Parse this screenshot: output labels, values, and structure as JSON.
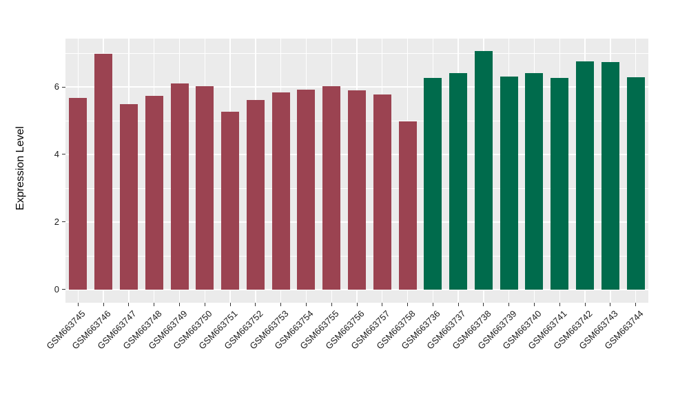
{
  "figure": {
    "ylabel": "Expression Level"
  },
  "chart_data": {
    "type": "bar",
    "title": "",
    "xlabel": "",
    "ylabel": "Expression Level",
    "categories": [
      "GSM663745",
      "GSM663746",
      "GSM663747",
      "GSM663748",
      "GSM663749",
      "GSM663750",
      "GSM663751",
      "GSM663752",
      "GSM663753",
      "GSM663754",
      "GSM663755",
      "GSM663756",
      "GSM663757",
      "GSM663758",
      "GSM663736",
      "GSM663737",
      "GSM663738",
      "GSM663739",
      "GSM663740",
      "GSM663741",
      "GSM663742",
      "GSM663743",
      "GSM663744"
    ],
    "values": [
      5.68,
      6.98,
      5.5,
      5.73,
      6.1,
      6.03,
      5.27,
      5.61,
      5.84,
      5.92,
      6.02,
      5.9,
      5.78,
      4.98,
      6.27,
      6.41,
      7.06,
      6.31,
      6.41,
      6.27,
      6.76,
      6.73,
      6.29
    ],
    "groups": [
      "g1",
      "g1",
      "g1",
      "g1",
      "g1",
      "g1",
      "g1",
      "g1",
      "g1",
      "g1",
      "g1",
      "g1",
      "g1",
      "g1",
      "g2",
      "g2",
      "g2",
      "g2",
      "g2",
      "g2",
      "g2",
      "g2",
      "g2"
    ],
    "group_colors": {
      "g1": "#9B4351",
      "g2": "#006B4C"
    },
    "yticks": [
      0,
      2,
      4,
      6
    ],
    "yticks_minor": [
      1,
      3,
      5,
      7
    ],
    "ylim": [
      -0.39,
      7.43
    ],
    "bar_rel_width": 0.71,
    "panel_bg": "#EBEBEB",
    "grid_color": "#FFFFFF",
    "legend": "none",
    "grid": "on"
  }
}
